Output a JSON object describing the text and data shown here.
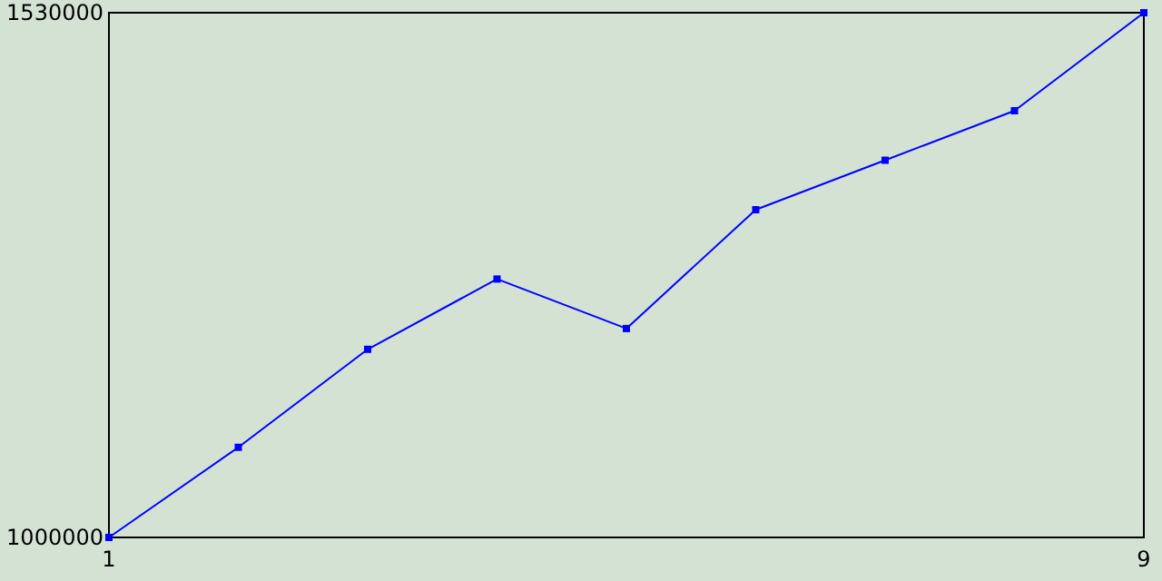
{
  "chart_data": {
    "type": "line",
    "x": [
      1,
      2,
      3,
      4,
      5,
      6,
      7,
      8,
      9
    ],
    "series": [
      {
        "color": "#0000ff",
        "values": [
          1000000,
          1091000,
          1190000,
          1261000,
          1211000,
          1331000,
          1381000,
          1431000,
          1530000
        ]
      }
    ],
    "xlim": [
      1,
      9
    ],
    "xticks": [
      1,
      9
    ],
    "ylim": [
      1000000,
      1530000
    ],
    "yticks": [
      1000000,
      1530000
    ],
    "marker": "square"
  }
}
